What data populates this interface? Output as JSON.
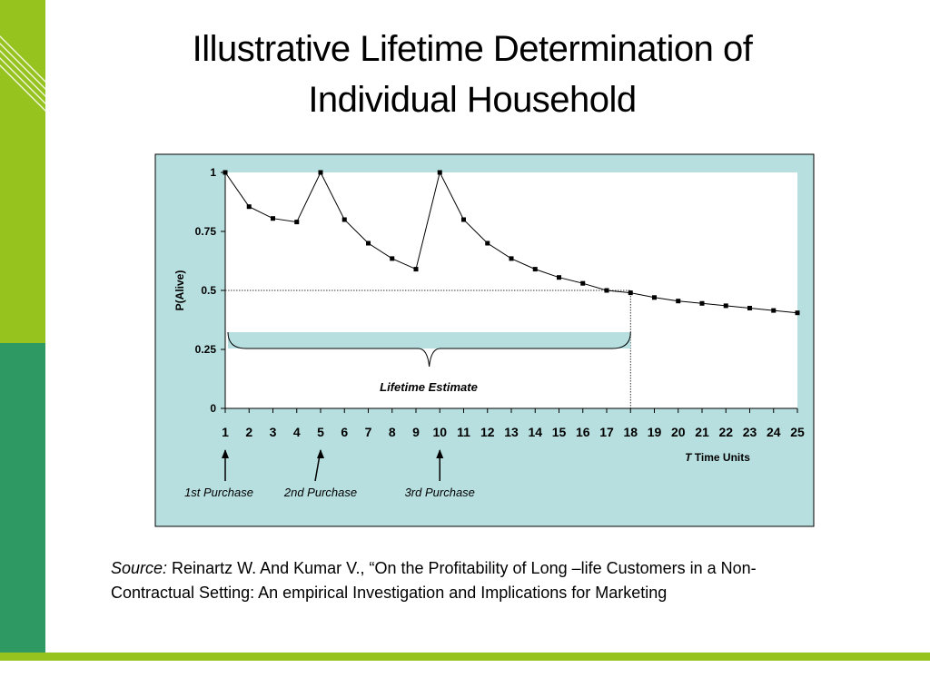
{
  "slide": {
    "title": "Illustrative Lifetime Determination of\nIndividual Household",
    "source_label": "Source:",
    "source_text": " Reinartz W. And Kumar V., “On the Profitability of Long –life Customers in a Non-Contractual Setting: An empirical Investigation and Implications for Marketing"
  },
  "colors": {
    "accent_green": "#96c31e",
    "dark_green": "#2f9963",
    "chart_background": "#b7dfe0",
    "plot_background": "#ffffff"
  },
  "chart_data": {
    "type": "line",
    "x": [
      1,
      2,
      3,
      4,
      5,
      6,
      7,
      8,
      9,
      10,
      11,
      12,
      13,
      14,
      15,
      16,
      17,
      18,
      19,
      20,
      21,
      22,
      23,
      24,
      25
    ],
    "series": [
      {
        "values": [
          1,
          0.855,
          0.805,
          0.79,
          1,
          0.8,
          0.7,
          0.635,
          0.59,
          1,
          0.8,
          0.7,
          0.635,
          0.59,
          0.555,
          0.53,
          0.5,
          0.49,
          0.47,
          0.455,
          0.445,
          0.435,
          0.425,
          0.415,
          0.405
        ]
      }
    ],
    "ylabel": "P(Alive)",
    "xlabel_italic": "T",
    "xlabel": "Time Units",
    "ylim": [
      0,
      1
    ],
    "yticks": [
      "0",
      "0.25",
      "0.5",
      "0.75",
      "1"
    ],
    "xticks": [
      "1",
      "2",
      "3",
      "4",
      "5",
      "6",
      "7",
      "8",
      "9",
      "10",
      "11",
      "12",
      "13",
      "14",
      "15",
      "16",
      "17",
      "18",
      "19",
      "20",
      "21",
      "22",
      "23",
      "24",
      "25"
    ],
    "threshold": {
      "y": 0.5,
      "x_end": 18
    },
    "brace": {
      "x_start": 1,
      "x_end": 18,
      "label": "Lifetime Estimate"
    },
    "purchases": [
      {
        "x": 1,
        "label": "1st Purchase"
      },
      {
        "x": 5,
        "label": "2nd Purchase"
      },
      {
        "x": 10,
        "label": "3rd Purchase"
      }
    ],
    "grid": false,
    "legend": "none"
  }
}
